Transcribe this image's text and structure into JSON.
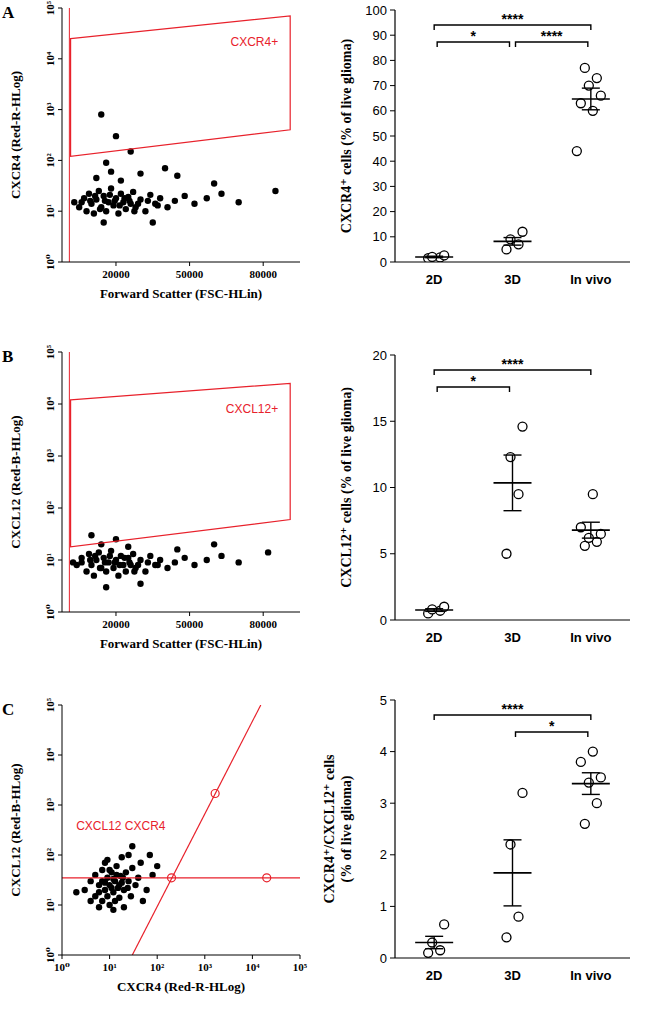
{
  "chart_data": [
    {
      "type": "scatter",
      "title": "A",
      "x_label": "Forward Scatter (FSC-HLin)",
      "y_label": "CXCR4 (Red-R-HLog)",
      "log": "y",
      "color": "#000000",
      "marker": "dot",
      "xlim": [
        -2000,
        95000
      ],
      "xticks": [
        20000,
        50000,
        80000
      ],
      "ylim": [
        1,
        100000
      ],
      "yticks": [
        {
          "value": 1,
          "label": "10⁰"
        },
        {
          "value": 10,
          "label": "10¹"
        },
        {
          "value": 100,
          "label": "10²"
        },
        {
          "value": 1000,
          "label": "10³"
        },
        {
          "value": 10000,
          "label": "10⁴"
        },
        {
          "value": 100000,
          "label": "10⁵"
        }
      ],
      "x": [
        5000,
        7000,
        8000,
        9000,
        10000,
        11000,
        12000,
        13000,
        14000,
        15000,
        16000,
        17000,
        18000,
        19000,
        20000,
        21000,
        22000,
        23000,
        24000,
        25000,
        26000,
        27000,
        28000,
        30000,
        32000,
        34000,
        36000,
        38000,
        41000,
        44000,
        48000,
        52000,
        57000,
        63000,
        70000,
        3000,
        6000,
        9500,
        11500,
        13500,
        15500,
        17500,
        19500,
        21500,
        23500,
        25500,
        27500,
        29000,
        33000,
        37000,
        12000,
        18000,
        22000,
        16000,
        30000,
        26000,
        20000,
        14000,
        45000,
        35000,
        15000,
        40000,
        60000,
        85000
      ],
      "values": [
        12,
        18,
        10,
        22,
        14,
        9,
        17,
        25,
        12,
        20,
        10,
        15,
        28,
        13,
        18,
        9,
        22,
        15,
        11,
        19,
        14,
        24,
        12,
        17,
        10,
        21,
        14,
        18,
        12,
        16,
        20,
        14,
        18,
        22,
        15,
        15,
        15,
        16,
        20,
        11,
        16,
        21,
        16,
        13,
        18,
        16,
        10,
        14,
        16,
        13,
        45,
        60,
        40,
        90,
        55,
        150,
        300,
        800,
        50,
        6,
        6,
        70,
        35,
        25
      ],
      "threshold_x": 1000,
      "gates": [
        {
          "type": "polygon",
          "label": "CXCR4+",
          "color": "#e8212b",
          "points": [
            [
              1500,
              25000
            ],
            [
              91000,
              70000
            ],
            [
              91000,
              400
            ],
            [
              1500,
              120
            ]
          ]
        }
      ]
    },
    {
      "type": "dot",
      "y_label": "CXCR4⁺ cells (% of live glioma)",
      "color": "#000000",
      "marker": "circle",
      "categories": [
        "2D",
        "3D",
        "In vivo"
      ],
      "ylim": [
        0,
        100
      ],
      "yticks": [
        0,
        10,
        20,
        30,
        40,
        50,
        60,
        70,
        80,
        90,
        100
      ],
      "points": [
        [
          1.5,
          1.8,
          2.0,
          2.6
        ],
        [
          5.0,
          7.0,
          9.0,
          12.0
        ],
        [
          77,
          73,
          70,
          66,
          63,
          60,
          44
        ]
      ],
      "mean": [
        2.0,
        8.2,
        64.7
      ],
      "sem": [
        0.3,
        1.5,
        4.3
      ],
      "significance": [
        {
          "from": "2D",
          "to": "In vivo",
          "label": "****"
        },
        {
          "from": "2D",
          "to": "3D",
          "label": "*"
        },
        {
          "from": "3D",
          "to": "In vivo",
          "label": "****"
        }
      ]
    },
    {
      "type": "scatter",
      "title": "B",
      "x_label": "Forward Scatter (FSC-HLin)",
      "y_label": "CXCL12 (Red-B-HLog)",
      "log": "y",
      "color": "#000000",
      "marker": "dot",
      "xlim": [
        -2000,
        95000
      ],
      "xticks": [
        20000,
        50000,
        80000
      ],
      "ylim": [
        1,
        100000
      ],
      "yticks": [
        {
          "value": 1,
          "label": "10⁰"
        },
        {
          "value": 10,
          "label": "10¹"
        },
        {
          "value": 100,
          "label": "10²"
        },
        {
          "value": 1000,
          "label": "10³"
        },
        {
          "value": 10000,
          "label": "10⁴"
        },
        {
          "value": 100000,
          "label": "10⁵"
        }
      ],
      "x": [
        4000,
        6000,
        8000,
        9000,
        10000,
        11000,
        12000,
        13000,
        14000,
        15000,
        16000,
        17000,
        18000,
        19000,
        20000,
        21000,
        22000,
        23000,
        24000,
        25000,
        26000,
        27000,
        28000,
        30000,
        32000,
        34000,
        36000,
        38000,
        41000,
        44000,
        48000,
        52000,
        57000,
        63000,
        70000,
        2500,
        6000,
        9500,
        11500,
        13500,
        15500,
        17500,
        19500,
        21500,
        23500,
        25500,
        27500,
        29000,
        33000,
        37000,
        14000,
        20000,
        25000,
        30000,
        16000,
        45000,
        60000,
        82000,
        10000
      ],
      "values": [
        8,
        11,
        6,
        13,
        8,
        5,
        10,
        14,
        7,
        11,
        6,
        9,
        15,
        7,
        10,
        5,
        12,
        8,
        6,
        11,
        8,
        13,
        7,
        10,
        6,
        12,
        8,
        10,
        7,
        9,
        11,
        8,
        10,
        12,
        9,
        9,
        9,
        10,
        12,
        7,
        9,
        12,
        9,
        8,
        11,
        9,
        6,
        8,
        9,
        8,
        20,
        25,
        18,
        3.5,
        3,
        16,
        20,
        14,
        30
      ],
      "threshold_x": 1000,
      "gates": [
        {
          "type": "polygon",
          "label": "CXCL12+",
          "color": "#e8212b",
          "points": [
            [
              1500,
              12000
            ],
            [
              91000,
              25000
            ],
            [
              91000,
              60
            ],
            [
              1500,
              18
            ]
          ]
        }
      ]
    },
    {
      "type": "dot",
      "y_label": "CXCL12⁺ cells (% of live glioma)",
      "color": "#000000",
      "marker": "circle",
      "categories": [
        "2D",
        "3D",
        "In vivo"
      ],
      "ylim": [
        0,
        20
      ],
      "yticks": [
        0,
        5,
        10,
        15,
        20
      ],
      "points": [
        [
          0.5,
          0.7,
          0.8,
          1.0
        ],
        [
          5.0,
          9.5,
          12.3,
          14.6
        ],
        [
          5.6,
          5.9,
          6.2,
          6.5,
          7.0,
          9.5
        ]
      ],
      "mean": [
        0.75,
        10.35,
        6.78
      ],
      "sem": [
        0.1,
        2.1,
        0.6
      ],
      "significance": [
        {
          "from": "2D",
          "to": "In vivo",
          "label": "****"
        },
        {
          "from": "2D",
          "to": "3D",
          "label": "*"
        }
      ]
    },
    {
      "type": "scatter",
      "title": "C",
      "x_label": "CXCR4 (Red-R-HLog)",
      "y_label": "CXCL12 (Red-B-HLog)",
      "log": true,
      "color": "#000000",
      "marker": "dot",
      "xlim": [
        1,
        100000
      ],
      "xticks": [
        {
          "value": 1,
          "label": "10⁰"
        },
        {
          "value": 10,
          "label": "10¹"
        },
        {
          "value": 100,
          "label": "10²"
        },
        {
          "value": 1000,
          "label": "10³"
        },
        {
          "value": 10000,
          "label": "10⁴"
        },
        {
          "value": 100000,
          "label": "10⁵"
        }
      ],
      "ylim": [
        1,
        100000
      ],
      "yticks": [
        {
          "value": 1,
          "label": "10⁰"
        },
        {
          "value": 10,
          "label": "10¹"
        },
        {
          "value": 100,
          "label": "10²"
        },
        {
          "value": 1000,
          "label": "10³"
        },
        {
          "value": 10000,
          "label": "10⁴"
        },
        {
          "value": 100000,
          "label": "10⁵"
        }
      ],
      "x": [
        3,
        4,
        5,
        5,
        6,
        7,
        7,
        8,
        9,
        10,
        10,
        11,
        12,
        13,
        14,
        15,
        16,
        17,
        18,
        20,
        22,
        25,
        28,
        30,
        35,
        40,
        8,
        12,
        20,
        6,
        9,
        18,
        45,
        60,
        80,
        50,
        4,
        25,
        100,
        2,
        30,
        70,
        6,
        8,
        11,
        14,
        9,
        12,
        16,
        7,
        10,
        13,
        19,
        24
      ],
      "values": [
        20,
        30,
        15,
        40,
        25,
        12,
        50,
        20,
        35,
        10,
        25,
        45,
        18,
        30,
        60,
        22,
        14,
        38,
        28,
        20,
        45,
        30,
        15,
        55,
        25,
        35,
        70,
        8,
        9,
        9,
        80,
        90,
        70,
        20,
        40,
        12,
        12,
        100,
        60,
        18,
        150,
        100,
        18,
        28,
        22,
        40,
        15,
        33,
        25,
        30,
        50,
        12,
        35,
        22
      ],
      "gates": [
        {
          "type": "quadrant",
          "label": "CXCL12 CXCR4",
          "color": "#e8212b",
          "lines": [
            [
              [
                30,
                1
              ],
              [
                15000,
                100000
              ]
            ],
            [
              [
                1,
                35
              ],
              [
                100000,
                35
              ]
            ]
          ],
          "handles": [
            [
              200,
              35
            ],
            [
              1650,
              1700
            ],
            [
              20000,
              35
            ]
          ]
        }
      ]
    },
    {
      "type": "dot",
      "y_label": [
        "CXCR4⁺/CXCL12⁺ cells",
        "(% of live glioma)"
      ],
      "color": "#000000",
      "marker": "circle",
      "categories": [
        "2D",
        "3D",
        "In vivo"
      ],
      "ylim": [
        0,
        5
      ],
      "yticks": [
        0,
        1,
        2,
        3,
        4,
        5
      ],
      "points": [
        [
          0.1,
          0.15,
          0.3,
          0.65
        ],
        [
          0.4,
          0.8,
          2.2,
          3.2
        ],
        [
          2.6,
          3.0,
          3.4,
          3.5,
          3.8,
          4.0
        ]
      ],
      "mean": [
        0.3,
        1.65,
        3.38
      ],
      "sem": [
        0.12,
        0.64,
        0.21
      ],
      "significance": [
        {
          "from": "2D",
          "to": "In vivo",
          "label": "****"
        },
        {
          "from": "3D",
          "to": "In vivo",
          "label": "*"
        }
      ]
    }
  ]
}
